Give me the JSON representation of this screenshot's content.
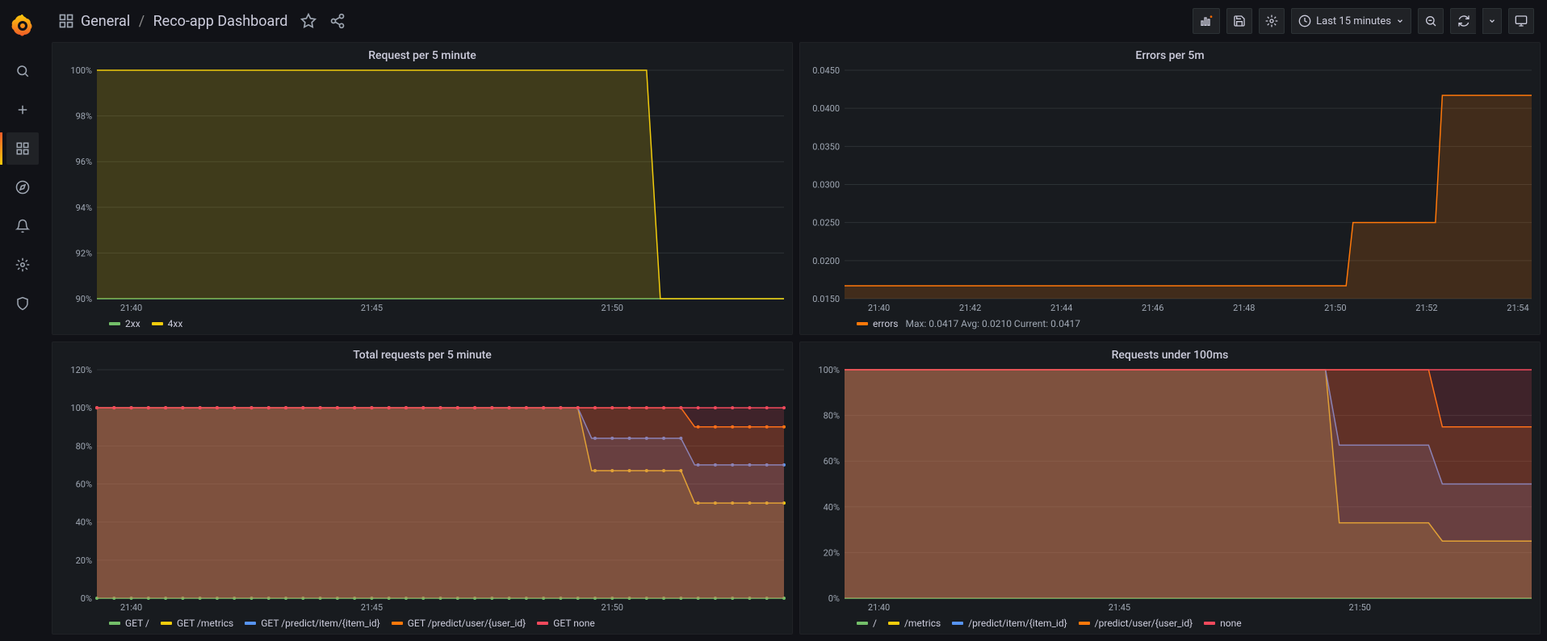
{
  "breadcrumb": {
    "folder": "General",
    "page": "Reco-app Dashboard"
  },
  "timepicker": {
    "label": "Last 15 minutes"
  },
  "colors": {
    "green": "#73bf69",
    "yellow": "#f2cc0c",
    "blue": "#5794f2",
    "orange": "#ff780a",
    "red": "#f2495c",
    "bg": "#181b1f",
    "grid": "#2c3235",
    "axis": "#9fa7b3"
  },
  "panels": {
    "req5m": {
      "title": "Request per 5 minute",
      "type": "area-stacked",
      "ylim": [
        90,
        100
      ],
      "yticks": [
        90,
        92,
        94,
        96,
        98,
        100
      ],
      "yformat": "percent",
      "xticks": [
        "21:40",
        "21:45",
        "21:50"
      ],
      "xrange": [
        "21:39",
        "21:54"
      ],
      "series": [
        {
          "name": "2xx",
          "color": "#73bf69",
          "points": [
            [
              0,
              90
            ],
            [
              0.8,
              90
            ],
            [
              1.0,
              90
            ]
          ]
        },
        {
          "name": "4xx",
          "color": "#f2cc0c",
          "points": [
            [
              0,
              100
            ],
            [
              0.8,
              100
            ],
            [
              0.82,
              90
            ],
            [
              1.0,
              90
            ]
          ],
          "stack_on": "2xx"
        }
      ],
      "legend": [
        {
          "label": "2xx",
          "color": "#73bf69"
        },
        {
          "label": "4xx",
          "color": "#f2cc0c"
        }
      ]
    },
    "err5m": {
      "title": "Errors per 5m",
      "type": "area",
      "ylim": [
        0.015,
        0.045
      ],
      "yticks": [
        0.015,
        0.02,
        0.025,
        0.03,
        0.035,
        0.04,
        0.045
      ],
      "yformat": "decimal4",
      "xticks": [
        "21:40",
        "21:42",
        "21:44",
        "21:46",
        "21:48",
        "21:50",
        "21:52",
        "21:54"
      ],
      "xrange": [
        "21:39",
        "21:54"
      ],
      "series": [
        {
          "name": "errors",
          "color": "#ff780a",
          "points": [
            [
              0,
              0.0167
            ],
            [
              0.73,
              0.0167
            ],
            [
              0.74,
              0.025
            ],
            [
              0.86,
              0.025
            ],
            [
              0.87,
              0.0417
            ],
            [
              1.0,
              0.0417
            ]
          ]
        }
      ],
      "legend": [
        {
          "label": "errors",
          "color": "#ff780a",
          "stats": "Max: 0.0417  Avg: 0.0210  Current: 0.0417"
        }
      ]
    },
    "total5m": {
      "title": "Total requests per 5 minute",
      "type": "area-stacked-points",
      "ylim": [
        0,
        120
      ],
      "yticks": [
        0,
        20,
        40,
        60,
        80,
        100,
        120
      ],
      "yformat": "percent",
      "xticks": [
        "21:40",
        "21:45",
        "21:50"
      ],
      "xrange": [
        "21:39",
        "21:54"
      ],
      "marker": "circle",
      "series": [
        {
          "name": "GET /",
          "color": "#73bf69",
          "points": [
            [
              0,
              0
            ],
            [
              1,
              0
            ]
          ]
        },
        {
          "name": "GET /metrics",
          "color": "#f2cc0c",
          "points": [
            [
              0,
              100
            ],
            [
              0.7,
              100
            ],
            [
              0.72,
              67
            ],
            [
              0.85,
              67
            ],
            [
              0.87,
              50
            ],
            [
              1.0,
              50
            ]
          ]
        },
        {
          "name": "GET /predict/item/{item_id}",
          "color": "#5794f2",
          "points": [
            [
              0,
              100
            ],
            [
              0.7,
              100
            ],
            [
              0.72,
              84
            ],
            [
              0.85,
              84
            ],
            [
              0.87,
              70
            ],
            [
              1.0,
              70
            ]
          ]
        },
        {
          "name": "GET /predict/user/{user_id}",
          "color": "#ff780a",
          "points": [
            [
              0,
              100
            ],
            [
              0.7,
              100
            ],
            [
              0.85,
              100
            ],
            [
              0.87,
              90
            ],
            [
              1.0,
              90
            ]
          ]
        },
        {
          "name": "GET none",
          "color": "#f2495c",
          "points": [
            [
              0,
              100
            ],
            [
              1.0,
              100
            ]
          ]
        }
      ],
      "legend": [
        {
          "label": "GET /",
          "color": "#73bf69"
        },
        {
          "label": "GET /metrics",
          "color": "#f2cc0c"
        },
        {
          "label": "GET /predict/item/{item_id}",
          "color": "#5794f2"
        },
        {
          "label": "GET /predict/user/{user_id}",
          "color": "#ff780a"
        },
        {
          "label": "GET none",
          "color": "#f2495c"
        }
      ]
    },
    "under100": {
      "title": "Requests under 100ms",
      "type": "area-stacked",
      "ylim": [
        0,
        100
      ],
      "yticks": [
        0,
        20,
        40,
        60,
        80,
        100
      ],
      "yformat": "percent",
      "xticks": [
        "21:40",
        "21:45",
        "21:50"
      ],
      "xrange": [
        "21:39",
        "21:54"
      ],
      "series": [
        {
          "name": "/",
          "color": "#73bf69",
          "points": [
            [
              0,
              0
            ],
            [
              1,
              0
            ]
          ]
        },
        {
          "name": "/metrics",
          "color": "#f2cc0c",
          "points": [
            [
              0,
              100
            ],
            [
              0.7,
              100
            ],
            [
              0.72,
              33
            ],
            [
              0.85,
              33
            ],
            [
              0.87,
              25
            ],
            [
              1.0,
              25
            ]
          ]
        },
        {
          "name": "/predict/item/{item_id}",
          "color": "#5794f2",
          "points": [
            [
              0,
              100
            ],
            [
              0.7,
              100
            ],
            [
              0.72,
              67
            ],
            [
              0.85,
              67
            ],
            [
              0.87,
              50
            ],
            [
              1.0,
              50
            ]
          ]
        },
        {
          "name": "/predict/user/{user_id}",
          "color": "#ff780a",
          "points": [
            [
              0,
              100
            ],
            [
              0.7,
              100
            ],
            [
              0.85,
              100
            ],
            [
              0.87,
              75
            ],
            [
              1.0,
              75
            ]
          ]
        },
        {
          "name": "none",
          "color": "#f2495c",
          "points": [
            [
              0,
              100
            ],
            [
              1.0,
              100
            ]
          ]
        }
      ],
      "legend": [
        {
          "label": "/",
          "color": "#73bf69"
        },
        {
          "label": "/metrics",
          "color": "#f2cc0c"
        },
        {
          "label": "/predict/item/{item_id}",
          "color": "#5794f2"
        },
        {
          "label": "/predict/user/{user_id}",
          "color": "#ff780a"
        },
        {
          "label": "none",
          "color": "#f2495c"
        }
      ]
    }
  }
}
